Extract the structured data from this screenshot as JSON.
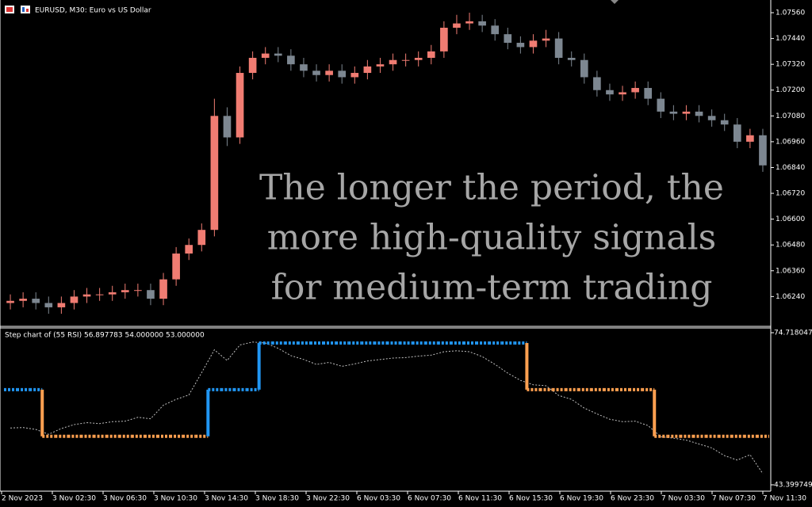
{
  "window": {
    "title": "EURUSD, M30:  Euro vs US Dollar"
  },
  "overlay_text": [
    "The longer the period, the",
    "more high-quality signals",
    "for medium-term trading"
  ],
  "time_axis": {
    "labels": [
      "2 Nov 2023",
      "3 Nov 02:30",
      "3 Nov 06:30",
      "3 Nov 10:30",
      "3 Nov 14:30",
      "3 Nov 18:30",
      "3 Nov 22:30",
      "6 Nov 03:30",
      "6 Nov 07:30",
      "6 Nov 11:30",
      "6 Nov 15:30",
      "6 Nov 19:30",
      "6 Nov 23:30",
      "7 Nov 03:30",
      "7 Nov 07:30",
      "7 Nov 11:30"
    ]
  },
  "chart_data": [
    {
      "type": "candlestick",
      "up_color": "#f07c72",
      "down_color": "#7d8791",
      "open": [
        1.0621,
        1.0622,
        1.0623,
        1.0621,
        1.0619,
        1.0621,
        1.0624,
        1.0625,
        1.0625,
        1.0626,
        1.0627,
        1.0627,
        1.0623,
        1.0632,
        1.0644,
        1.0648,
        1.0655,
        1.0708,
        1.0698,
        1.0728,
        1.0735,
        1.0737,
        1.0736,
        1.0732,
        1.0729,
        1.0727,
        1.0729,
        1.0726,
        1.0728,
        1.0731,
        1.0732,
        1.0734,
        1.0734,
        1.0735,
        1.0738,
        1.0749,
        1.0751,
        1.0752,
        1.075,
        1.0746,
        1.0742,
        1.074,
        1.0743,
        1.0744,
        1.0735,
        1.0734,
        1.0726,
        1.072,
        1.0718,
        1.0719,
        1.0721,
        1.0716,
        1.071,
        1.0709,
        1.071,
        1.0708,
        1.0706,
        1.0704,
        1.0696,
        1.0699
      ],
      "high": [
        1.0625,
        1.0626,
        1.0626,
        1.0624,
        1.0624,
        1.0627,
        1.0628,
        1.0628,
        1.0629,
        1.063,
        1.063,
        1.063,
        1.0635,
        1.0647,
        1.0651,
        1.0658,
        1.0716,
        1.0712,
        1.0731,
        1.0738,
        1.074,
        1.074,
        1.0739,
        1.0735,
        1.0732,
        1.0732,
        1.0732,
        1.0731,
        1.0734,
        1.0735,
        1.0737,
        1.0737,
        1.0738,
        1.0741,
        1.0752,
        1.0755,
        1.0756,
        1.0755,
        1.0753,
        1.0749,
        1.0745,
        1.0746,
        1.0748,
        1.0747,
        1.0738,
        1.0737,
        1.0729,
        1.0723,
        1.0722,
        1.0724,
        1.0724,
        1.0719,
        1.0713,
        1.0713,
        1.0713,
        1.0711,
        1.0709,
        1.0707,
        1.0702,
        1.0702
      ],
      "low": [
        1.0618,
        1.0619,
        1.0618,
        1.0616,
        1.0616,
        1.0618,
        1.0621,
        1.0622,
        1.0622,
        1.0623,
        1.0624,
        1.062,
        1.062,
        1.0629,
        1.0641,
        1.0645,
        1.0652,
        1.0694,
        1.0695,
        1.0725,
        1.0732,
        1.0733,
        1.0729,
        1.0726,
        1.0724,
        1.0724,
        1.0723,
        1.0723,
        1.0725,
        1.0728,
        1.0729,
        1.0731,
        1.0731,
        1.0732,
        1.0735,
        1.0746,
        1.0748,
        1.0747,
        1.0743,
        1.0739,
        1.0737,
        1.0737,
        1.074,
        1.0732,
        1.0731,
        1.0723,
        1.0717,
        1.0715,
        1.0715,
        1.0716,
        1.0713,
        1.0707,
        1.0706,
        1.0706,
        1.0705,
        1.0703,
        1.0701,
        1.0693,
        1.0693,
        1.0682
      ],
      "close": [
        1.0622,
        1.0623,
        1.0621,
        1.0619,
        1.0621,
        1.0624,
        1.0625,
        1.0625,
        1.0626,
        1.0627,
        1.0627,
        1.0623,
        1.0632,
        1.0644,
        1.0648,
        1.0655,
        1.0708,
        1.0698,
        1.0728,
        1.0735,
        1.0737,
        1.0736,
        1.0732,
        1.0729,
        1.0727,
        1.0729,
        1.0726,
        1.0728,
        1.0731,
        1.0732,
        1.0734,
        1.0734,
        1.0735,
        1.0738,
        1.0749,
        1.0751,
        1.0752,
        1.075,
        1.0746,
        1.0742,
        1.074,
        1.0743,
        1.0744,
        1.0735,
        1.0734,
        1.0726,
        1.072,
        1.0718,
        1.0719,
        1.0721,
        1.0716,
        1.071,
        1.0709,
        1.071,
        1.0708,
        1.0706,
        1.0704,
        1.0696,
        1.0699,
        1.0685
      ],
      "ylim": [
        1.06105,
        1.07619
      ],
      "yticks": [
        {
          "value": 1.0756,
          "label": "1.07560"
        },
        {
          "value": 1.0744,
          "label": "1.07440"
        },
        {
          "value": 1.0732,
          "label": "1.07320"
        },
        {
          "value": 1.072,
          "label": "1.07200"
        },
        {
          "value": 1.0708,
          "label": "1.07080"
        },
        {
          "value": 1.0696,
          "label": "1.06960"
        },
        {
          "value": 1.0684,
          "label": "1.06840"
        },
        {
          "value": 1.0672,
          "label": "1.06720"
        },
        {
          "value": 1.066,
          "label": "1.06600"
        },
        {
          "value": 1.0648,
          "label": "1.06480"
        },
        {
          "value": 1.0636,
          "label": "1.06360"
        },
        {
          "value": 1.0624,
          "label": "1.06240"
        }
      ]
    },
    {
      "type": "step",
      "title": "Step chart of (55 RSI) 56.897783 54.000000 53.000000",
      "up_color": "#2196f3",
      "down_color": "#ffa050",
      "line_color": "#bfbfbf",
      "rsi": [
        55.1,
        55.2,
        54.8,
        53.8,
        55.0,
        55.8,
        56.2,
        56.0,
        56.4,
        56.5,
        57.3,
        57.0,
        59.8,
        61.0,
        61.9,
        66.5,
        71.2,
        69.0,
        72.2,
        72.8,
        72.6,
        71.5,
        70.0,
        69.2,
        68.2,
        68.6,
        67.8,
        68.3,
        68.9,
        69.2,
        69.5,
        69.6,
        69.9,
        70.1,
        70.8,
        71.0,
        70.8,
        69.8,
        68.2,
        66.4,
        64.9,
        64.0,
        63.8,
        61.8,
        61.0,
        59.2,
        58.0,
        56.9,
        56.4,
        56.5,
        55.6,
        53.3,
        53.0,
        52.6,
        51.8,
        51.0,
        49.4,
        48.5,
        49.6,
        45.7
      ],
      "step": [
        63,
        63,
        63,
        53.4,
        53.4,
        53.4,
        53.4,
        53.4,
        53.4,
        53.4,
        53.4,
        53.4,
        53.4,
        53.4,
        53.4,
        53.4,
        63,
        63,
        63,
        63,
        72.6,
        72.6,
        72.6,
        72.6,
        72.6,
        72.6,
        72.6,
        72.6,
        72.6,
        72.6,
        72.6,
        72.6,
        72.6,
        72.6,
        72.6,
        72.6,
        72.6,
        72.6,
        72.6,
        72.6,
        72.6,
        63,
        63,
        63,
        63,
        63,
        63,
        63,
        63,
        63,
        63,
        53.4,
        53.4,
        53.4,
        53.4,
        53.4,
        53.4,
        53.4,
        53.4,
        53.4
      ],
      "ylim": [
        43.399749,
        74.718047
      ],
      "yticks": [
        43.399749,
        74.718047
      ]
    }
  ]
}
